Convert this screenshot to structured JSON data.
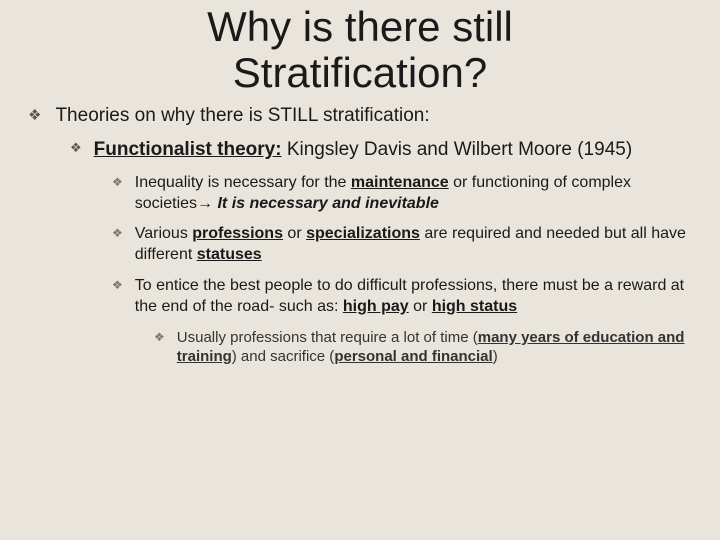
{
  "colors": {
    "background": "#e9e5dc",
    "text": "#1a1a1a",
    "bullet": "#5c5850",
    "bullet_dim": "#7a766e"
  },
  "typography": {
    "title_fontsize": 42,
    "title_weight": 400,
    "lvl1_fontsize": 19,
    "lvl2_fontsize": 19,
    "lvl3_fontsize": 16,
    "lvl4_fontsize": 15,
    "font_family": "Arial"
  },
  "bullet_glyph": "❖",
  "title": "Why is there still Stratification?",
  "lvl1_text": "Theories on why there is STILL stratification:",
  "lvl2": {
    "prefix_bold_ul": "Functionalist theory:",
    "rest": " Kingsley Davis and Wilbert Moore (1945)"
  },
  "lvl3_items": [
    {
      "pre": "Inequality is necessary for the ",
      "bold_ul_1": "maintenance",
      "mid1": " or functioning of complex societies",
      "arrow": "→ ",
      "italic_bold": "It is necessary and inevitable"
    },
    {
      "pre": "Various ",
      "bold_ul_1": "professions",
      "mid1": " or ",
      "bold_ul_2": "specializations",
      "mid2": " are required and needed but all have different ",
      "bold_ul_3": "statuses"
    },
    {
      "pre": "To entice the best people to do difficult professions, there must be a reward at the end of the road- such as: ",
      "bold_ul_1": "high pay",
      "mid1": " or ",
      "bold_ul_2": "high status"
    }
  ],
  "lvl4": {
    "pre": "Usually professions that require a lot of time (",
    "bold_ul_1": "many years of education and training",
    "mid1": ") and sacrifice (",
    "bold_ul_2": "personal and financial",
    "post": ")"
  }
}
